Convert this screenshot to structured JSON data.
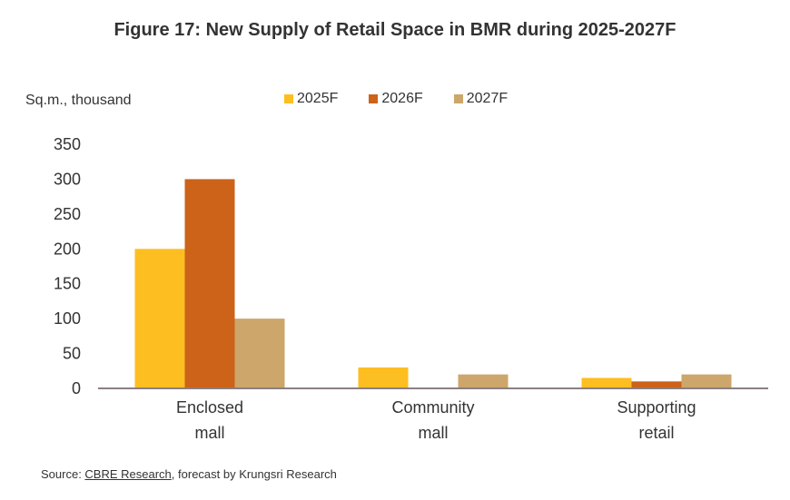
{
  "chart_data": {
    "type": "bar",
    "title": "Figure 17: New Supply of Retail Space in BMR during 2025-2027F",
    "ylabel": "Sq.m., thousand",
    "xlabel": "",
    "categories": [
      [
        "Enclosed",
        "mall"
      ],
      [
        "Community",
        "mall"
      ],
      [
        "Supporting",
        "retail"
      ]
    ],
    "series": [
      {
        "name": "2025F",
        "color": "#FDBE21",
        "values": [
          200,
          30,
          15
        ]
      },
      {
        "name": "2026F",
        "color": "#CD6219",
        "values": [
          300,
          0,
          10
        ]
      },
      {
        "name": "2027F",
        "color": "#CCA66A",
        "values": [
          100,
          20,
          20
        ]
      }
    ],
    "ylim": [
      0,
      350
    ],
    "yticks": [
      0,
      50,
      100,
      150,
      200,
      250,
      300,
      350
    ],
    "grid": false,
    "legend": "top-center"
  },
  "source": {
    "prefix": "Source: ",
    "link": "CBRE Research",
    "suffix": ", forecast by Krungsri Research"
  }
}
